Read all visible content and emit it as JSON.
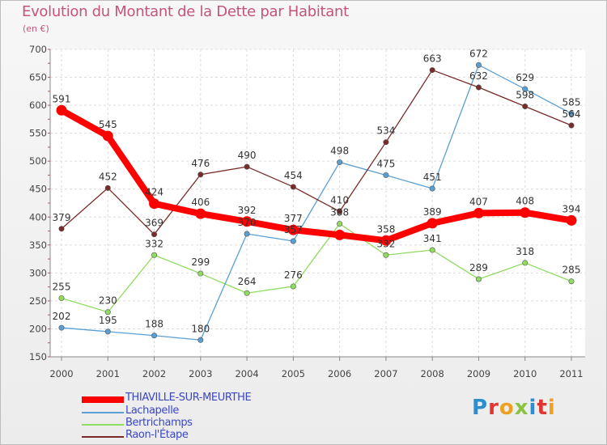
{
  "title": "Evolution du Montant de la Dette par Habitant",
  "unit": "(en €)",
  "brand": {
    "text": "Proxiti",
    "letters": [
      {
        "ch": "P",
        "color": "#2a8fd0"
      },
      {
        "ch": "r",
        "color": "#e3342f"
      },
      {
        "ch": "o",
        "color": "#f0a020"
      },
      {
        "ch": "x",
        "color": "#8ac43f"
      },
      {
        "ch": "i",
        "color": "#2a8fd0"
      },
      {
        "ch": "t",
        "color": "#e3342f"
      },
      {
        "ch": "i",
        "color": "#f0a020"
      }
    ]
  },
  "chart_data": {
    "type": "line",
    "title": "Evolution du Montant de la Dette par Habitant",
    "ylabel": "(en €)",
    "ylim": [
      150,
      700
    ],
    "yticks": [
      150,
      200,
      250,
      300,
      350,
      400,
      450,
      500,
      550,
      600,
      650,
      700
    ],
    "categories": [
      "2000",
      "2001",
      "2002",
      "2003",
      "2004",
      "2005",
      "2006",
      "2007",
      "2008",
      "2009",
      "2010",
      "2011"
    ],
    "grid": true,
    "legend": "bottom-left",
    "series": [
      {
        "name": "THIAVILLE-SUR-MEURTHE",
        "color": "#ff0000",
        "values": [
          591,
          545,
          424,
          406,
          392,
          377,
          368,
          358,
          389,
          407,
          408,
          394
        ],
        "labels": [
          "591",
          "545",
          "424",
          "406",
          "392",
          "377",
          "",
          "358",
          "389",
          "407",
          "408",
          "394"
        ]
      },
      {
        "name": "Lachapelle",
        "color": "#5a9fd4",
        "values": [
          202,
          195,
          188,
          180,
          370,
          357,
          498,
          475,
          451,
          672,
          629,
          585
        ],
        "labels": [
          "202",
          "195",
          "188",
          "180",
          "370",
          "357",
          "498",
          "475",
          "451",
          "672",
          "629",
          "585"
        ]
      },
      {
        "name": "Bertrichamps",
        "color": "#8fdc5f",
        "values": [
          255,
          230,
          332,
          299,
          264,
          276,
          388,
          332,
          341,
          289,
          318,
          285
        ],
        "labels": [
          "255",
          "230",
          "332",
          "299",
          "264",
          "276",
          "388",
          "332",
          "341",
          "289",
          "318",
          "285"
        ]
      },
      {
        "name": "Raon-l'Étape",
        "color": "#7a2a2a",
        "values": [
          379,
          452,
          369,
          476,
          490,
          454,
          410,
          534,
          663,
          632,
          598,
          564
        ],
        "labels": [
          "379",
          "452",
          "369",
          "476",
          "490",
          "454",
          "410",
          "534",
          "663",
          "632",
          "598",
          "564"
        ]
      }
    ]
  }
}
